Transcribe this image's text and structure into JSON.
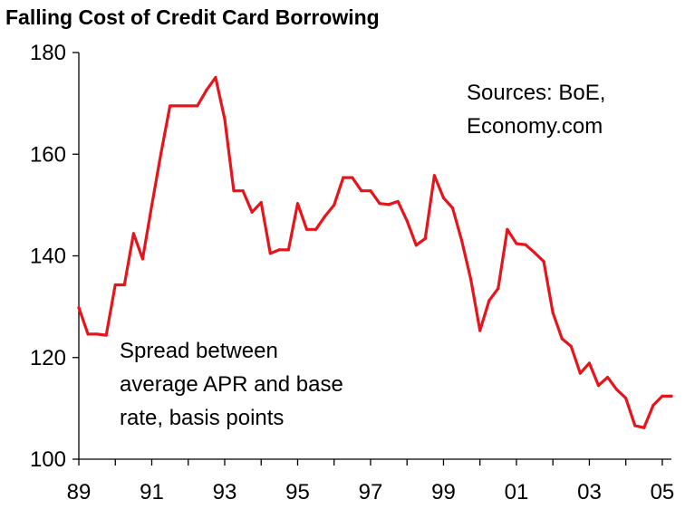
{
  "chart_data": {
    "type": "line",
    "title": "Falling Cost of Credit Card Borrowing",
    "xlabel": "",
    "ylabel": "",
    "x_tick_labels": [
      "89",
      "91",
      "93",
      "95",
      "97",
      "99",
      "01",
      "03",
      "05"
    ],
    "y_tick_labels": [
      "100",
      "120",
      "140",
      "160",
      "180"
    ],
    "ylim": [
      100,
      180
    ],
    "xlim": [
      1989.0,
      2005.25
    ],
    "grid": false,
    "legend": "none",
    "annotations": {
      "source_line1": "Sources: BoE,",
      "source_line2": "Economy.com",
      "desc_line1": "Spread between",
      "desc_line2": "average APR and base",
      "desc_line3": "rate, basis points"
    },
    "colors": {
      "line": "#e8141b",
      "axis": "#000000"
    },
    "series": [
      {
        "x": [
          1989.0,
          1989.25,
          1989.5,
          1989.75,
          1990.0,
          1990.25,
          1990.5,
          1990.75,
          1991.0,
          1991.25,
          1991.5,
          1991.75,
          1992.0,
          1992.25,
          1992.5,
          1992.75,
          1993.0,
          1993.25,
          1993.5,
          1993.75,
          1994.0,
          1994.25,
          1994.5,
          1994.75,
          1995.0,
          1995.25,
          1995.5,
          1995.75,
          1996.0,
          1996.25,
          1996.5,
          1996.75,
          1997.0,
          1997.25,
          1997.5,
          1997.75,
          1998.0,
          1998.25,
          1998.5,
          1998.75,
          1999.0,
          1999.25,
          1999.5,
          1999.75,
          2000.0,
          2000.25,
          2000.5,
          2000.75,
          2001.0,
          2001.25,
          2001.5,
          2001.75,
          2002.0,
          2002.25,
          2002.5,
          2002.75,
          2003.0,
          2003.25,
          2003.5,
          2003.75,
          2004.0,
          2004.25,
          2004.5,
          2004.75,
          2005.0,
          2005.25
        ],
        "values": [
          129.8,
          124.6,
          124.6,
          124.4,
          134.3,
          134.3,
          144.4,
          139.4,
          149.9,
          160.1,
          169.5,
          169.5,
          169.5,
          169.5,
          172.6,
          175.1,
          166.9,
          152.8,
          152.8,
          148.6,
          150.5,
          140.5,
          141.2,
          141.2,
          150.3,
          145.2,
          145.2,
          147.8,
          150.0,
          155.4,
          155.4,
          152.8,
          152.8,
          150.3,
          150.1,
          150.7,
          146.9,
          142.1,
          143.4,
          155.8,
          151.4,
          149.4,
          143.0,
          135.4,
          125.3,
          131.2,
          133.6,
          145.2,
          142.4,
          142.2,
          140.6,
          138.9,
          128.8,
          123.7,
          122.2,
          116.9,
          118.9,
          114.5,
          116.1,
          113.7,
          112.0,
          106.6,
          106.2,
          110.6,
          112.4,
          112.4
        ]
      }
    ]
  }
}
